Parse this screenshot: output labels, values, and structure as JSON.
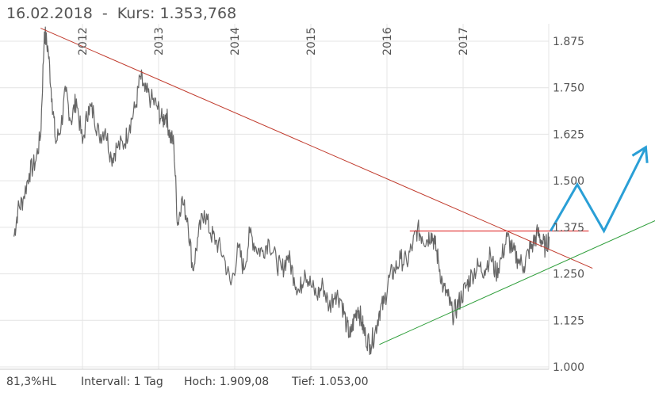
{
  "header": {
    "date": "16.02.2018",
    "separator": "-",
    "kurs_label": "Kurs:",
    "kurs_value": "1.353,768"
  },
  "footer": {
    "hl": "81,3%HL",
    "interval": "Intervall: 1 Tag",
    "high": "Hoch: 1.909,08",
    "low": "Tief: 1.053,00"
  },
  "chart_data": {
    "type": "line",
    "x_ticks": [
      "2012",
      "2013",
      "2014",
      "2015",
      "2016",
      "2017"
    ],
    "y_ticks": [
      "1.875",
      "1.750",
      "1.625",
      "1.500",
      "1.375",
      "1.250",
      "1.125",
      "1.000"
    ],
    "ylim": [
      1.0,
      1.92
    ],
    "grid": true,
    "colors": {
      "price": "#666666",
      "resistance_line": "#c0392b",
      "horizontal_level": "#e03030",
      "support_line": "#2e9e3a",
      "projection": "#2a9fd6",
      "grid": "#e4e4e4"
    },
    "series": [
      {
        "values": [
          [
            2011.1,
            1.35
          ],
          [
            2011.15,
            1.42
          ],
          [
            2011.22,
            1.45
          ],
          [
            2011.3,
            1.52
          ],
          [
            2011.38,
            1.55
          ],
          [
            2011.45,
            1.62
          ],
          [
            2011.5,
            1.9
          ],
          [
            2011.55,
            1.85
          ],
          [
            2011.6,
            1.72
          ],
          [
            2011.65,
            1.6
          ],
          [
            2011.72,
            1.65
          ],
          [
            2011.78,
            1.74
          ],
          [
            2011.85,
            1.66
          ],
          [
            2011.92,
            1.72
          ],
          [
            2012.0,
            1.6
          ],
          [
            2012.08,
            1.7
          ],
          [
            2012.15,
            1.68
          ],
          [
            2012.22,
            1.62
          ],
          [
            2012.3,
            1.64
          ],
          [
            2012.38,
            1.56
          ],
          [
            2012.45,
            1.59
          ],
          [
            2012.55,
            1.6
          ],
          [
            2012.62,
            1.65
          ],
          [
            2012.7,
            1.7
          ],
          [
            2012.76,
            1.78
          ],
          [
            2012.82,
            1.74
          ],
          [
            2012.9,
            1.72
          ],
          [
            2012.98,
            1.7
          ],
          [
            2013.05,
            1.66
          ],
          [
            2013.1,
            1.68
          ],
          [
            2013.15,
            1.62
          ],
          [
            2013.2,
            1.6
          ],
          [
            2013.25,
            1.38
          ],
          [
            2013.3,
            1.45
          ],
          [
            2013.38,
            1.4
          ],
          [
            2013.45,
            1.26
          ],
          [
            2013.52,
            1.35
          ],
          [
            2013.6,
            1.42
          ],
          [
            2013.68,
            1.36
          ],
          [
            2013.75,
            1.34
          ],
          [
            2013.85,
            1.3
          ],
          [
            2013.95,
            1.22
          ],
          [
            2014.05,
            1.32
          ],
          [
            2014.12,
            1.26
          ],
          [
            2014.2,
            1.36
          ],
          [
            2014.28,
            1.32
          ],
          [
            2014.36,
            1.31
          ],
          [
            2014.45,
            1.34
          ],
          [
            2014.55,
            1.28
          ],
          [
            2014.62,
            1.26
          ],
          [
            2014.7,
            1.3
          ],
          [
            2014.78,
            1.24
          ],
          [
            2014.85,
            1.2
          ],
          [
            2014.92,
            1.26
          ],
          [
            2015.0,
            1.22
          ],
          [
            2015.08,
            1.19
          ],
          [
            2015.16,
            1.22
          ],
          [
            2015.24,
            1.16
          ],
          [
            2015.32,
            1.2
          ],
          [
            2015.4,
            1.18
          ],
          [
            2015.47,
            1.11
          ],
          [
            2015.52,
            1.08
          ],
          [
            2015.57,
            1.13
          ],
          [
            2015.62,
            1.16
          ],
          [
            2015.67,
            1.12
          ],
          [
            2015.72,
            1.08
          ],
          [
            2015.78,
            1.06
          ],
          [
            2015.84,
            1.09
          ],
          [
            2015.9,
            1.15
          ],
          [
            2015.96,
            1.17
          ],
          [
            2016.03,
            1.24
          ],
          [
            2016.1,
            1.26
          ],
          [
            2016.18,
            1.29
          ],
          [
            2016.26,
            1.28
          ],
          [
            2016.34,
            1.33
          ],
          [
            2016.4,
            1.37
          ],
          [
            2016.46,
            1.35
          ],
          [
            2016.52,
            1.34
          ],
          [
            2016.58,
            1.36
          ],
          [
            2016.63,
            1.33
          ],
          [
            2016.68,
            1.28
          ],
          [
            2016.74,
            1.21
          ],
          [
            2016.8,
            1.19
          ],
          [
            2016.86,
            1.14
          ],
          [
            2016.92,
            1.16
          ],
          [
            2016.98,
            1.19
          ],
          [
            2017.05,
            1.22
          ],
          [
            2017.12,
            1.25
          ],
          [
            2017.2,
            1.27
          ],
          [
            2017.28,
            1.26
          ],
          [
            2017.36,
            1.3
          ],
          [
            2017.43,
            1.25
          ],
          [
            2017.5,
            1.29
          ],
          [
            2017.58,
            1.35
          ],
          [
            2017.65,
            1.31
          ],
          [
            2017.72,
            1.29
          ],
          [
            2017.8,
            1.27
          ],
          [
            2017.86,
            1.31
          ],
          [
            2017.92,
            1.33
          ],
          [
            2017.98,
            1.36
          ],
          [
            2018.03,
            1.34
          ],
          [
            2018.08,
            1.32
          ],
          [
            2018.13,
            1.35
          ]
        ]
      }
    ],
    "annotations": {
      "resistance_line": [
        [
          2011.45,
          1.91
        ],
        [
          2018.7,
          1.265
        ]
      ],
      "horizontal_level": [
        [
          2016.3,
          1.365
        ],
        [
          2018.65,
          1.365
        ]
      ],
      "support_line": [
        [
          2015.9,
          1.06
        ],
        [
          2019.6,
          1.4
        ]
      ],
      "projection": [
        [
          2018.15,
          1.365
        ],
        [
          2018.5,
          1.49
        ],
        [
          2018.85,
          1.365
        ],
        [
          2019.4,
          1.59
        ]
      ]
    }
  }
}
